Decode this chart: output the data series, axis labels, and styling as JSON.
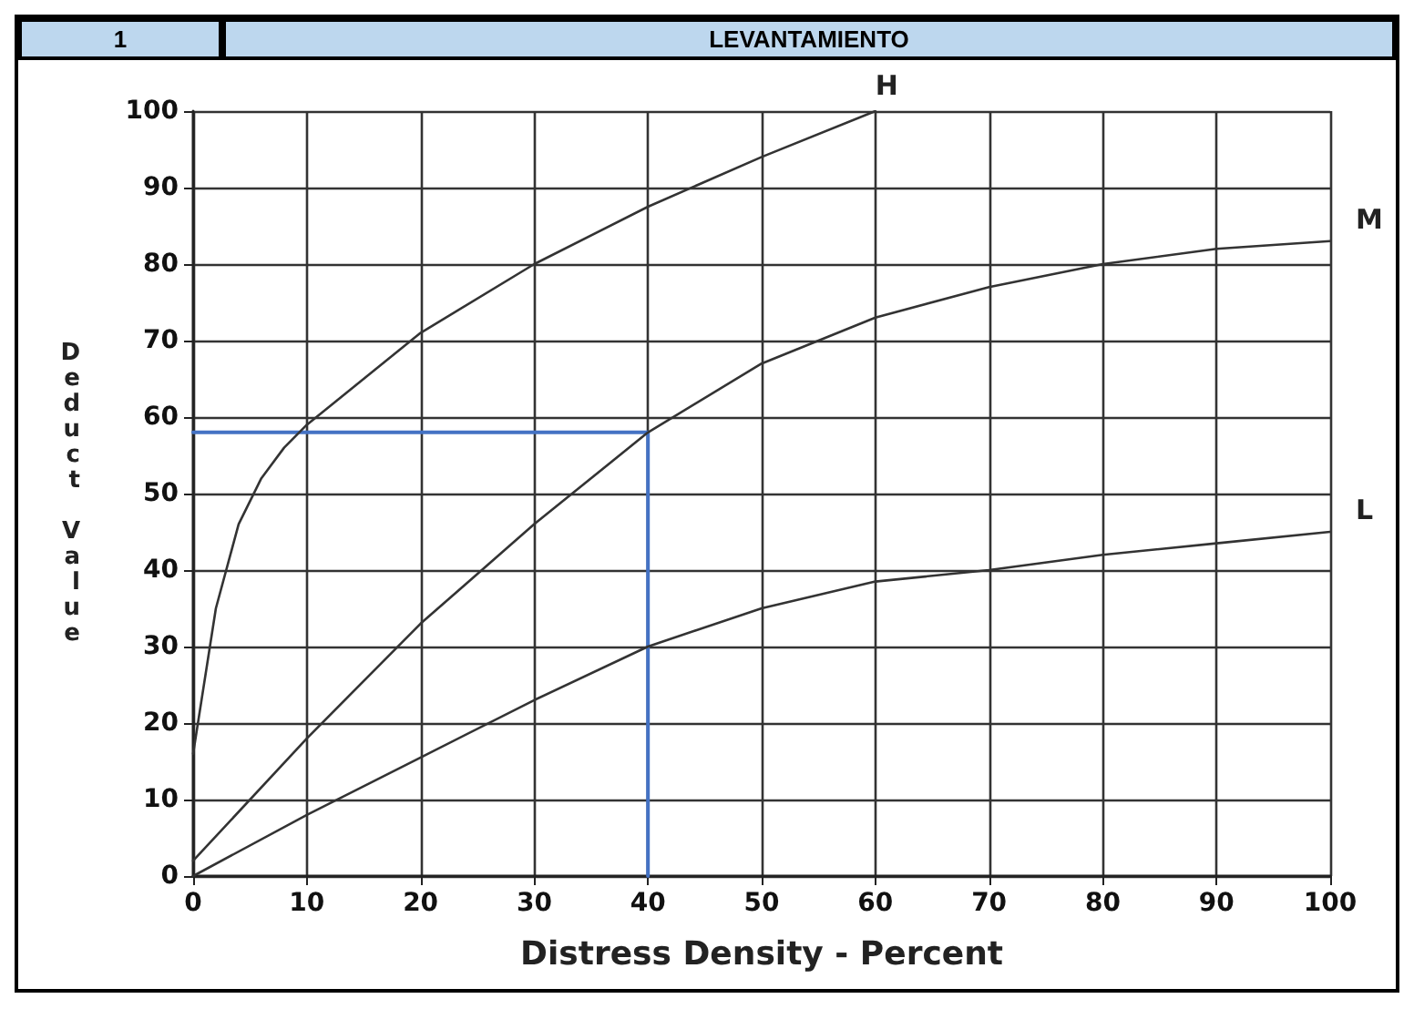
{
  "chart_data": {
    "type": "line",
    "title": "LEVANTAMIENTO",
    "xlabel": "Distress Density - Percent",
    "ylabel": "Deduct Value",
    "annotations": [
      "1"
    ],
    "series": [
      {
        "name": "H",
        "color": "#333333",
        "x": [
          0,
          2,
          4,
          6,
          8,
          10,
          15,
          20,
          30,
          40,
          50,
          60
        ],
        "values": [
          16,
          35,
          46,
          52,
          56,
          59,
          65,
          71,
          80,
          87.5,
          94,
          100
        ]
      },
      {
        "name": "M",
        "color": "#333333",
        "x": [
          0,
          10,
          20,
          30,
          40,
          50,
          60,
          70,
          80,
          90,
          100
        ],
        "values": [
          2,
          18,
          33,
          46,
          58,
          67,
          73,
          77,
          80,
          82,
          83
        ]
      },
      {
        "name": "L",
        "color": "#333333",
        "x": [
          0,
          10,
          20,
          30,
          40,
          50,
          60,
          70,
          80,
          90,
          100
        ],
        "values": [
          0,
          8,
          15.5,
          23,
          30,
          35,
          38.5,
          40,
          42,
          43.5,
          45
        ]
      },
      {
        "color": "#4472c4",
        "x": [
          0,
          40,
          40
        ],
        "values": [
          58,
          58,
          0
        ]
      }
    ],
    "xlim": [
      0,
      100
    ],
    "xticks": [
      0,
      10,
      20,
      30,
      40,
      50,
      60,
      70,
      80,
      90,
      100
    ],
    "ylim": [
      0,
      100
    ],
    "yticks": [
      0,
      10,
      20,
      30,
      40,
      50,
      60,
      70,
      80,
      90,
      100
    ],
    "grid": true,
    "marker": "none",
    "line_style": "solid",
    "legend": false
  }
}
